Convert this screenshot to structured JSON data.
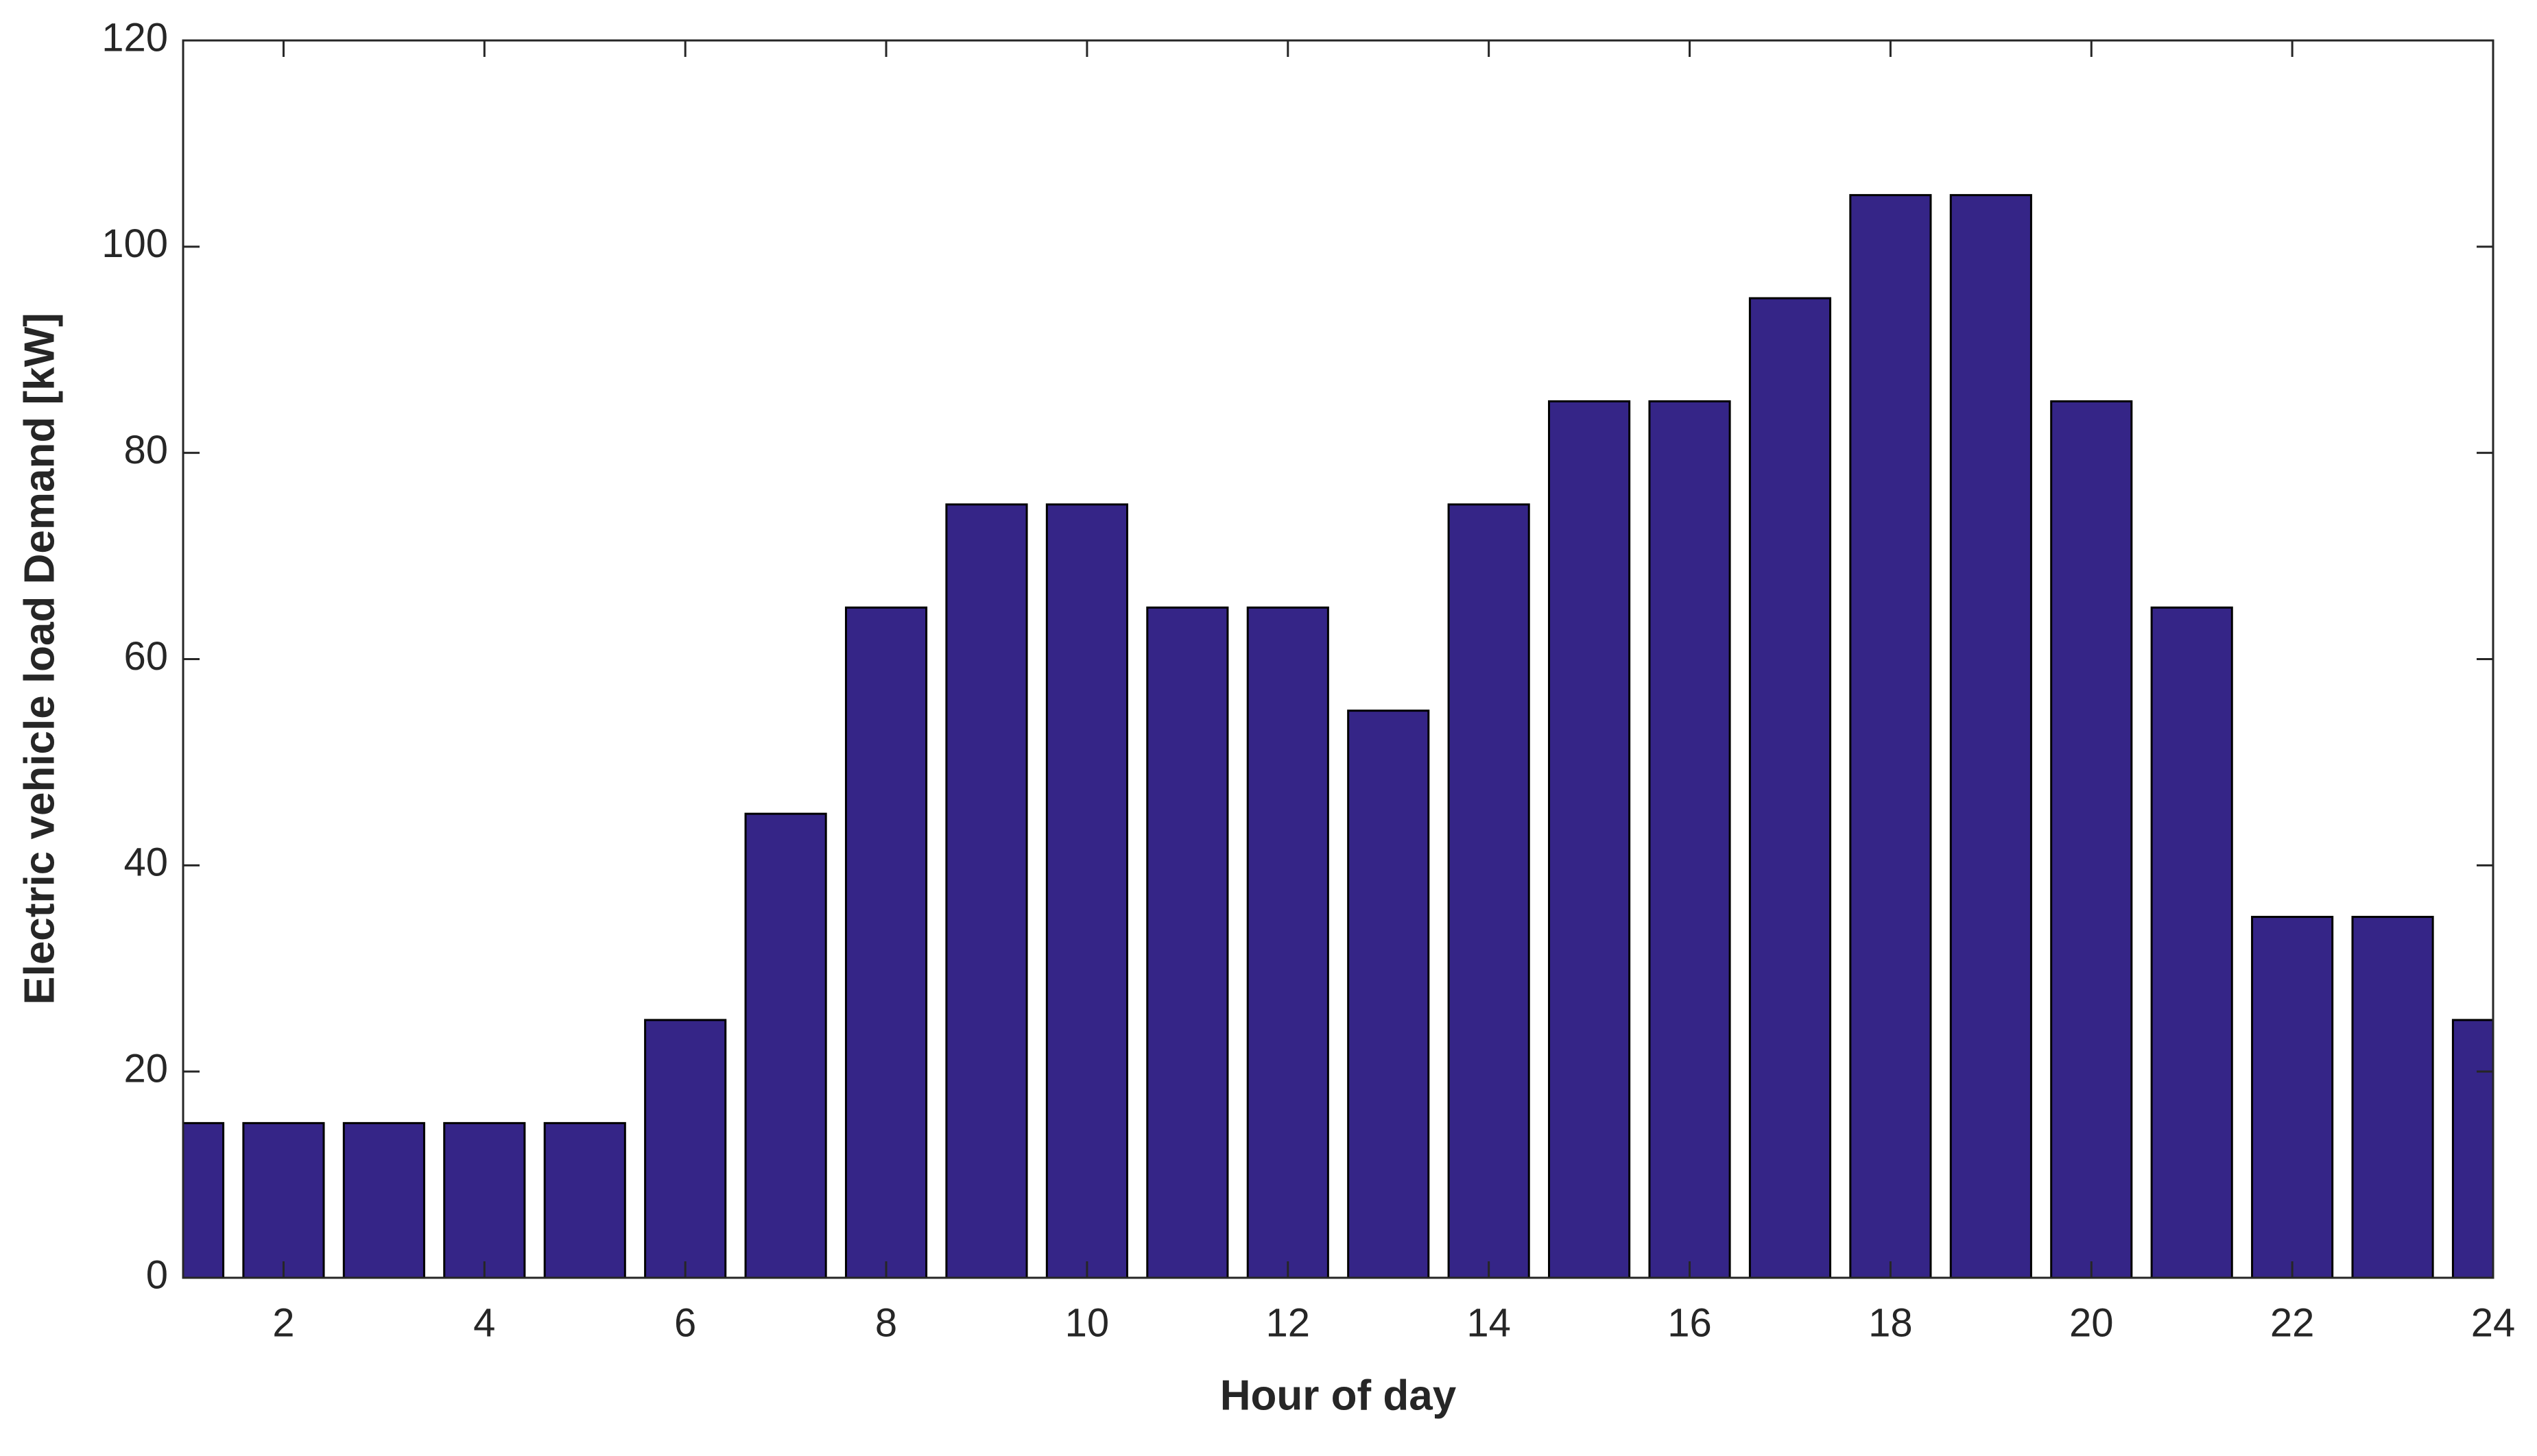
{
  "chart_data": {
    "type": "bar",
    "x_label": "Hour of day",
    "y_label": "Electric vehicle load Demand [kW]",
    "x": [
      1,
      2,
      3,
      4,
      5,
      6,
      7,
      8,
      9,
      10,
      11,
      12,
      13,
      14,
      15,
      16,
      17,
      18,
      19,
      20,
      21,
      22,
      23,
      24
    ],
    "values": [
      15,
      15,
      15,
      15,
      15,
      25,
      45,
      65,
      75,
      75,
      65,
      65,
      55,
      75,
      85,
      85,
      95,
      105,
      105,
      85,
      65,
      35,
      35,
      25
    ],
    "color": "#352587",
    "xlim": [
      1,
      24
    ],
    "xticks": [
      2,
      4,
      6,
      8,
      10,
      12,
      14,
      16,
      18,
      20,
      22,
      24
    ],
    "ylim": [
      0,
      120
    ],
    "yticks": [
      0,
      20,
      40,
      60,
      80,
      100,
      120
    ],
    "grid": false
  }
}
